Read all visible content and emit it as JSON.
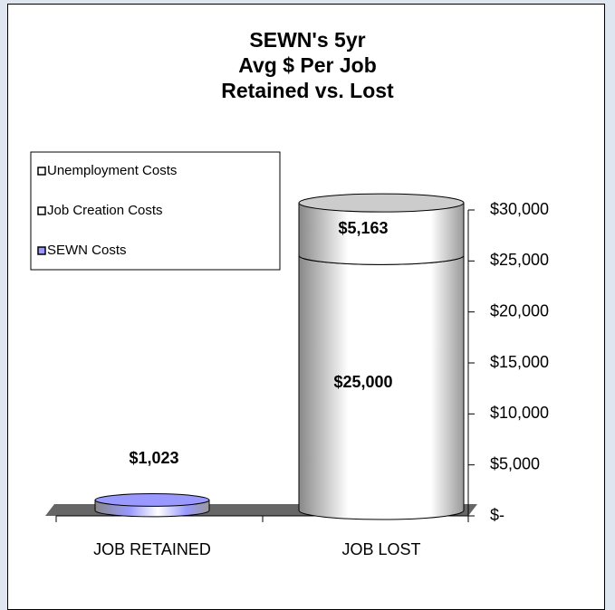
{
  "chart_data": {
    "type": "cylinder-stacked-bar",
    "title": "SEWN's 5yr\nAvg $ Per Job\nRetained vs. Lost",
    "categories": [
      "JOB RETAINED",
      "JOB LOST"
    ],
    "series": [
      {
        "name": "SEWN Costs",
        "color": "#9999ff",
        "values": [
          1023,
          null
        ],
        "value_labels": [
          "$1,023",
          null
        ]
      },
      {
        "name": "Job Creation  Costs",
        "color": "#ffffff",
        "values": [
          null,
          25000
        ],
        "value_labels": [
          null,
          "$25,000"
        ]
      },
      {
        "name": "Unemployment Costs",
        "color": "#ffffff",
        "values": [
          null,
          5163
        ],
        "value_labels": [
          null,
          "$5,163"
        ]
      }
    ],
    "ylim": [
      0,
      30000
    ],
    "yticks": [
      {
        "value": 0,
        "label": "$-"
      },
      {
        "value": 5000,
        "label": "$5,000"
      },
      {
        "value": 10000,
        "label": "$10,000"
      },
      {
        "value": 15000,
        "label": "$15,000"
      },
      {
        "value": 20000,
        "label": "$20,000"
      },
      {
        "value": 25000,
        "label": "$25,000"
      },
      {
        "value": 30000,
        "label": "$30,000"
      }
    ],
    "y_axis_side": "right",
    "legend": "top-left"
  }
}
